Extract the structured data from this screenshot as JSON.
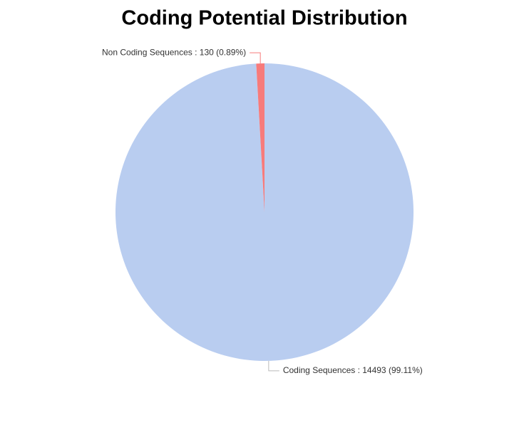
{
  "chart_data": {
    "type": "pie",
    "title": "Coding Potential Distribution",
    "values": [
      14493,
      130
    ],
    "value_labels": [
      "Coding Sequences : 14493 (99.11%)",
      "Non Coding Sequences : 130 (0.89%)"
    ],
    "colors": [
      "#b9cdf0",
      "#f77b7b"
    ]
  }
}
